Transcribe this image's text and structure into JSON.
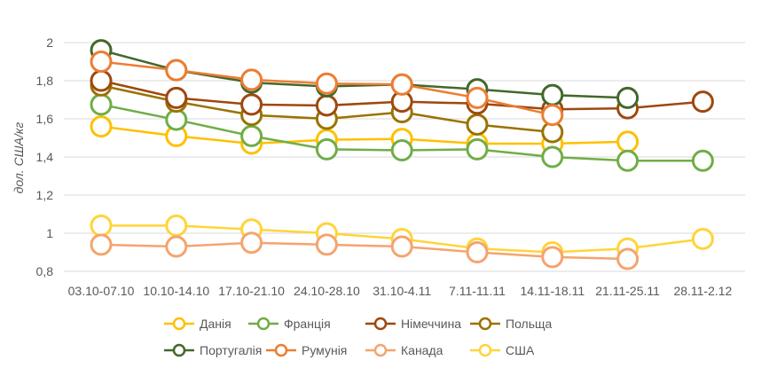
{
  "chart_data": {
    "type": "line",
    "title": "",
    "xlabel": "",
    "ylabel": "дол. США/кг",
    "ylim": [
      0.8,
      2.0
    ],
    "yticks": [
      "0,8",
      "1",
      "1,2",
      "1,4",
      "1,6",
      "1,8",
      "2"
    ],
    "ytick_values": [
      0.8,
      1.0,
      1.2,
      1.4,
      1.6,
      1.8,
      2.0
    ],
    "grid": true,
    "legend_position": "bottom",
    "categories": [
      "03.10-07.10",
      "10.10-14.10",
      "17.10-21.10",
      "24.10-28.10",
      "31.10-4.11",
      "7.11-11.11",
      "14.11-18.11",
      "21.11-25.11",
      "28.11-2.12"
    ],
    "series": [
      {
        "name": "США",
        "color": "#FFD43B",
        "values": [
          1.04,
          1.04,
          1.02,
          1.0,
          0.97,
          0.92,
          0.9,
          0.92,
          0.97
        ]
      },
      {
        "name": "Канада",
        "color": "#F4A46E",
        "values": [
          0.94,
          0.93,
          0.95,
          0.94,
          0.93,
          0.9,
          0.875,
          0.865,
          null
        ]
      },
      {
        "name": "Данія",
        "color": "#FFC000",
        "values": [
          1.56,
          1.51,
          1.47,
          1.49,
          1.495,
          1.47,
          1.47,
          1.48,
          null
        ]
      },
      {
        "name": "Франція",
        "color": "#70AD47",
        "values": [
          1.675,
          1.595,
          1.51,
          1.44,
          1.435,
          1.44,
          1.4,
          1.38,
          1.38
        ]
      },
      {
        "name": "Польща",
        "color": "#997300",
        "values": [
          1.775,
          1.69,
          1.62,
          1.6,
          1.635,
          1.57,
          1.53,
          null,
          null
        ]
      },
      {
        "name": "Німеччина",
        "color": "#9E480E",
        "values": [
          1.8,
          1.71,
          1.675,
          1.67,
          1.69,
          1.68,
          1.65,
          1.655,
          1.69
        ]
      },
      {
        "name": "Португалія",
        "color": "#43682B",
        "values": [
          1.96,
          1.855,
          1.79,
          1.77,
          1.78,
          1.755,
          1.725,
          1.71,
          null
        ]
      },
      {
        "name": "Румунія",
        "color": "#ED7D31",
        "values": [
          1.9,
          1.855,
          1.805,
          1.785,
          1.78,
          1.71,
          1.62,
          null,
          null
        ]
      }
    ],
    "legend": [
      "Данія",
      "Франція",
      "Німеччина",
      "Польща",
      "Португалія",
      "Румунія",
      "Канада",
      "США"
    ]
  }
}
